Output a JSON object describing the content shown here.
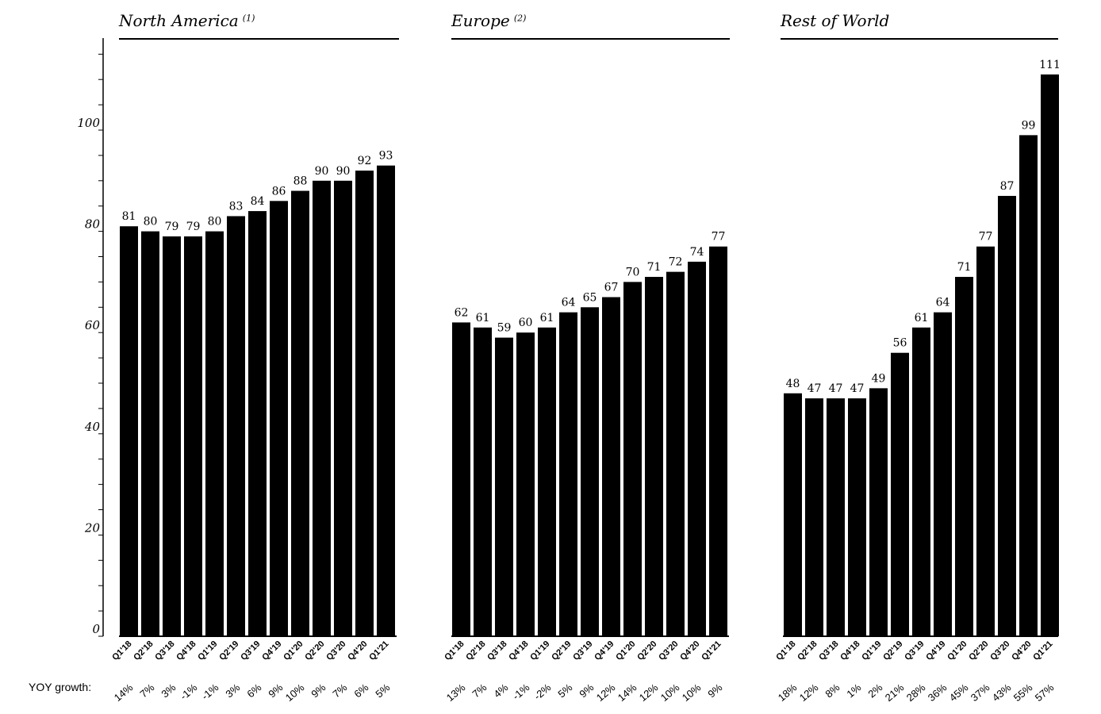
{
  "colors": {
    "bar": "#000000",
    "axis": "#000000",
    "text": "#000000"
  },
  "yoy_label": "YOY growth:",
  "chart_data": [
    {
      "type": "bar",
      "title": "North America",
      "footnote": "(1)",
      "categories": [
        "Q1'18",
        "Q2'18",
        "Q3'18",
        "Q4'18",
        "Q1'19",
        "Q2'19",
        "Q3'19",
        "Q4'19",
        "Q1'20",
        "Q2'20",
        "Q3'20",
        "Q4'20",
        "Q1'21"
      ],
      "values": [
        81,
        80,
        79,
        79,
        80,
        83,
        84,
        86,
        88,
        90,
        90,
        92,
        93
      ],
      "value_labels": [
        "81",
        "80",
        "79",
        "79",
        "80",
        "83",
        "84",
        "86",
        "88",
        "90",
        "90",
        "92",
        "93"
      ],
      "yoy_growth": [
        "14%",
        "7%",
        "3%",
        "-1%",
        "-1%",
        "3%",
        "6%",
        "9%",
        "10%",
        "9%",
        "7%",
        "6%",
        "5%"
      ],
      "ylim": [
        0,
        118
      ],
      "yticks": [
        "0",
        "20",
        "40",
        "60",
        "80",
        "100"
      ],
      "ytick_values": [
        0,
        20,
        40,
        60,
        80,
        100
      ]
    },
    {
      "type": "bar",
      "title": "Europe",
      "footnote": "(2)",
      "categories": [
        "Q1'18",
        "Q2'18",
        "Q3'18",
        "Q4'18",
        "Q1'19",
        "Q2'19",
        "Q3'19",
        "Q4'19",
        "Q1'20",
        "Q2'20",
        "Q3'20",
        "Q4'20",
        "Q1'21"
      ],
      "values": [
        62,
        61,
        59,
        60,
        61,
        64,
        65,
        67,
        70,
        71,
        72,
        74,
        77
      ],
      "value_labels": [
        "62",
        "61",
        "59",
        "60",
        "61",
        "64",
        "65",
        "67",
        "70",
        "71",
        "72",
        "74",
        "77"
      ],
      "yoy_growth": [
        "13%",
        "7%",
        "4%",
        "-1%",
        "-2%",
        "5%",
        "9%",
        "12%",
        "14%",
        "12%",
        "10%",
        "10%",
        "9%"
      ],
      "ylim": [
        0,
        118
      ]
    },
    {
      "type": "bar",
      "title": "Rest of World",
      "footnote": "",
      "categories": [
        "Q1'18",
        "Q2'18",
        "Q3'18",
        "Q4'18",
        "Q1'19",
        "Q2'19",
        "Q3'19",
        "Q4'19",
        "Q1'20",
        "Q2'20",
        "Q3'20",
        "Q4'20",
        "Q1'21"
      ],
      "values": [
        48,
        47,
        47,
        47,
        49,
        56,
        61,
        64,
        71,
        77,
        87,
        99,
        111
      ],
      "value_labels": [
        "48",
        "47",
        "47",
        "47",
        "49",
        "56",
        "61",
        "64",
        "71",
        "77",
        "87",
        "99",
        "111"
      ],
      "yoy_growth": [
        "18%",
        "12%",
        "8%",
        "1%",
        "2%",
        "21%",
        "28%",
        "36%",
        "45%",
        "37%",
        "43%",
        "55%",
        "57%"
      ],
      "ylim": [
        0,
        118
      ]
    }
  ]
}
